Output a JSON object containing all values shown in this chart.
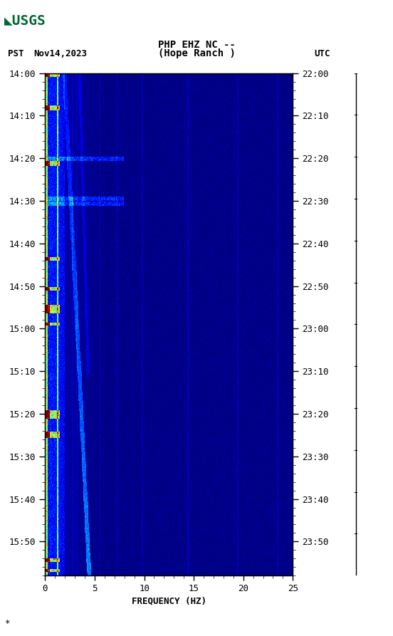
{
  "title_line1": "PHP EHZ NC --",
  "title_line2": "(Hope Ranch )",
  "left_label": "PST",
  "left_label2": "Nov14,2023",
  "right_label": "UTC",
  "xlabel": "FREQUENCY (HZ)",
  "ytick_labels_pst": [
    "14:00",
    "14:10",
    "14:20",
    "14:30",
    "14:40",
    "14:50",
    "15:00",
    "15:10",
    "15:20",
    "15:30",
    "15:40",
    "15:50"
  ],
  "ytick_labels_utc": [
    "22:00",
    "22:10",
    "22:20",
    "22:30",
    "22:40",
    "22:50",
    "23:00",
    "23:10",
    "23:20",
    "23:30",
    "23:40",
    "23:50"
  ],
  "xtick_positions": [
    0,
    5,
    10,
    15,
    20,
    25
  ],
  "xtick_labels": [
    "0",
    "5",
    "10",
    "15",
    "20",
    "25"
  ],
  "freq_min": 0,
  "freq_max": 25,
  "fig_bg": "#ffffff",
  "colormap": "jet",
  "watermark": "*",
  "total_minutes": 118,
  "n_time": 600,
  "n_freq": 500,
  "seed": 42
}
